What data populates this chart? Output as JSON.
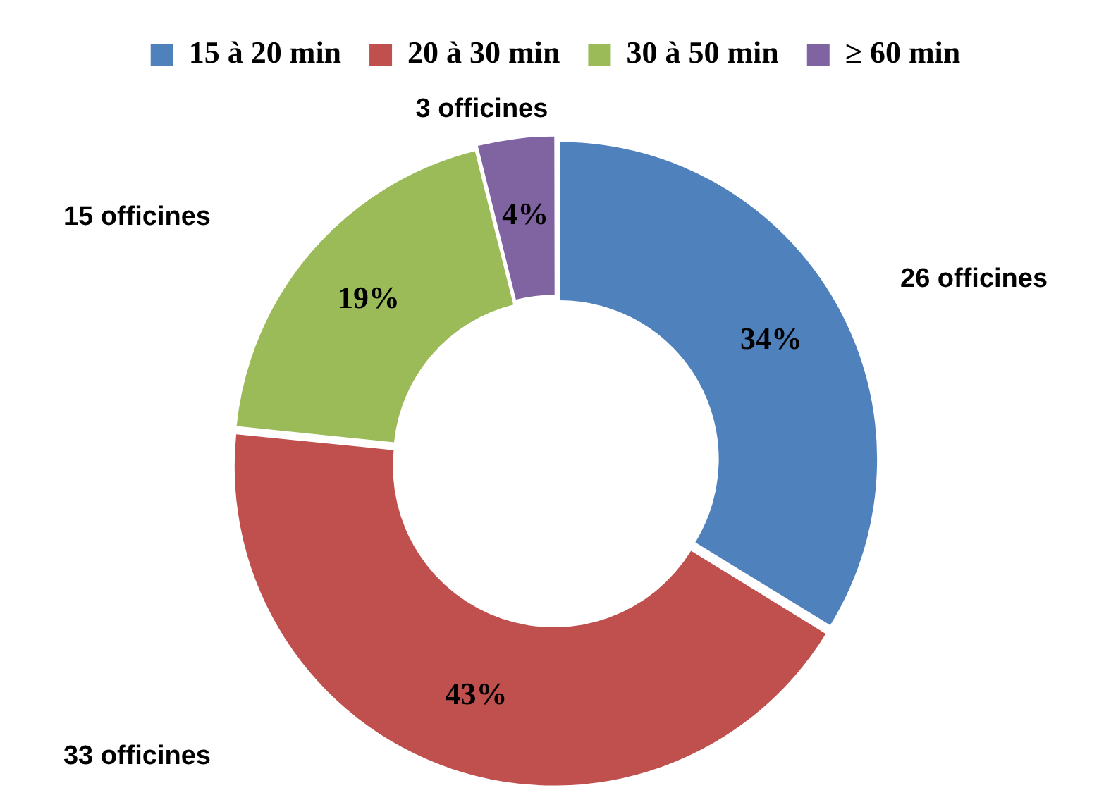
{
  "chart_data": {
    "type": "donut",
    "categories": [
      "15 à 20 min",
      "20 à 30 min",
      "30 à 50 min",
      "≥ 60 min"
    ],
    "values": [
      26,
      33,
      15,
      3
    ],
    "colors": [
      "#4f81bd",
      "#c0504d",
      "#9bbb59",
      "#8064a2"
    ],
    "value_labels": [
      "26 officines",
      "33 officines",
      "15 officines",
      "3 officines"
    ],
    "annotations": [
      {
        "text": "34%",
        "x": "15 à 20 min"
      },
      {
        "text": "43%",
        "x": "20 à 30 min"
      },
      {
        "text": "19%",
        "x": "30 à 50 min"
      },
      {
        "text": "4%",
        "x": "≥ 60 min"
      }
    ],
    "legend": "top"
  }
}
